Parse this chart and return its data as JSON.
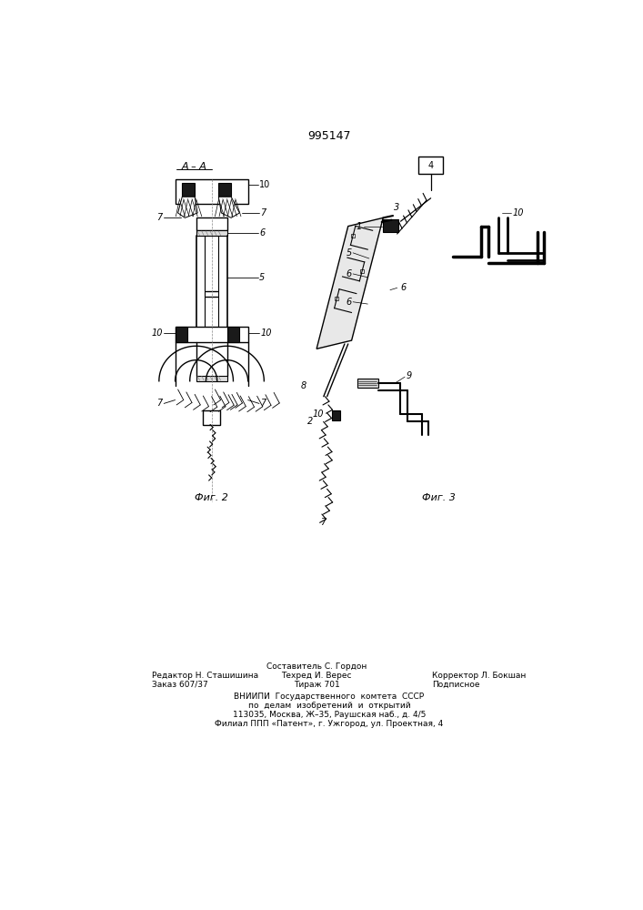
{
  "patent_number": "995147",
  "fig2_label": "Фиг. 2",
  "fig3_label": "Фиг. 3",
  "aa_label": "A – A",
  "footer_line1_left": "Редактор Н. Сташишина",
  "footer_line2_left": "Заказ 607/37",
  "footer_line1_center": "Составитель С. Гордон",
  "footer_line2_center": "Техред И. Верес",
  "footer_line3_center": "Тираж 701",
  "footer_line1_right": "Корректор Л. Бокшан",
  "footer_line2_right": "Подписное",
  "footer_vnipi1": "ВНИИПИ  Государственного  комтета  СССР",
  "footer_vnipi2": "по  делам  изобретений  и  открытий",
  "footer_vnipi3": "113035, Москва, Ж–35, Раушская наб., д. 4/5",
  "footer_vnipi4": "Филиал ППП «Патент», г. Ужгород, ул. Проектная, 4",
  "bg_color": "#ffffff",
  "line_color": "#000000",
  "fig_width": 7.07,
  "fig_height": 10.0
}
